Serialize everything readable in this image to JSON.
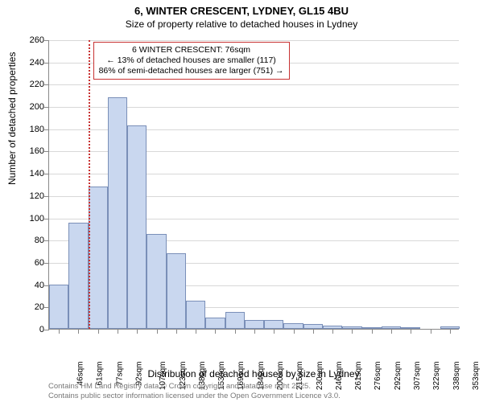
{
  "title": "6, WINTER CRESCENT, LYDNEY, GL15 4BU",
  "subtitle": "Size of property relative to detached houses in Lydney",
  "y_axis_title": "Number of detached properties",
  "x_axis_title": "Distribution of detached houses by size in Lydney",
  "footer_line1": "Contains HM Land Registry data © Crown copyright and database right 2025.",
  "footer_line2": "Contains public sector information licensed under the Open Government Licence v3.0.",
  "annotation": {
    "line1": "6 WINTER CRESCENT: 76sqm",
    "line2": "← 13% of detached houses are smaller (117)",
    "line3": "86% of semi-detached houses are larger (751) →"
  },
  "chart": {
    "type": "histogram",
    "ylim": [
      0,
      260
    ],
    "ytick_step": 20,
    "bar_fill": "#c9d7ef",
    "bar_stroke": "#7a8fb8",
    "grid_color": "#d8d8d8",
    "background_color": "#ffffff",
    "marker_color": "#c83232",
    "marker_x_index": 2,
    "x_labels": [
      "46sqm",
      "61sqm",
      "77sqm",
      "92sqm",
      "107sqm",
      "123sqm",
      "138sqm",
      "153sqm",
      "169sqm",
      "184sqm",
      "200sqm",
      "215sqm",
      "230sqm",
      "246sqm",
      "261sqm",
      "276sqm",
      "292sqm",
      "307sqm",
      "322sqm",
      "338sqm",
      "353sqm"
    ],
    "values": [
      40,
      95,
      128,
      208,
      183,
      85,
      68,
      25,
      10,
      15,
      8,
      8,
      5,
      4,
      3,
      2,
      1,
      2,
      1,
      0,
      2
    ]
  }
}
